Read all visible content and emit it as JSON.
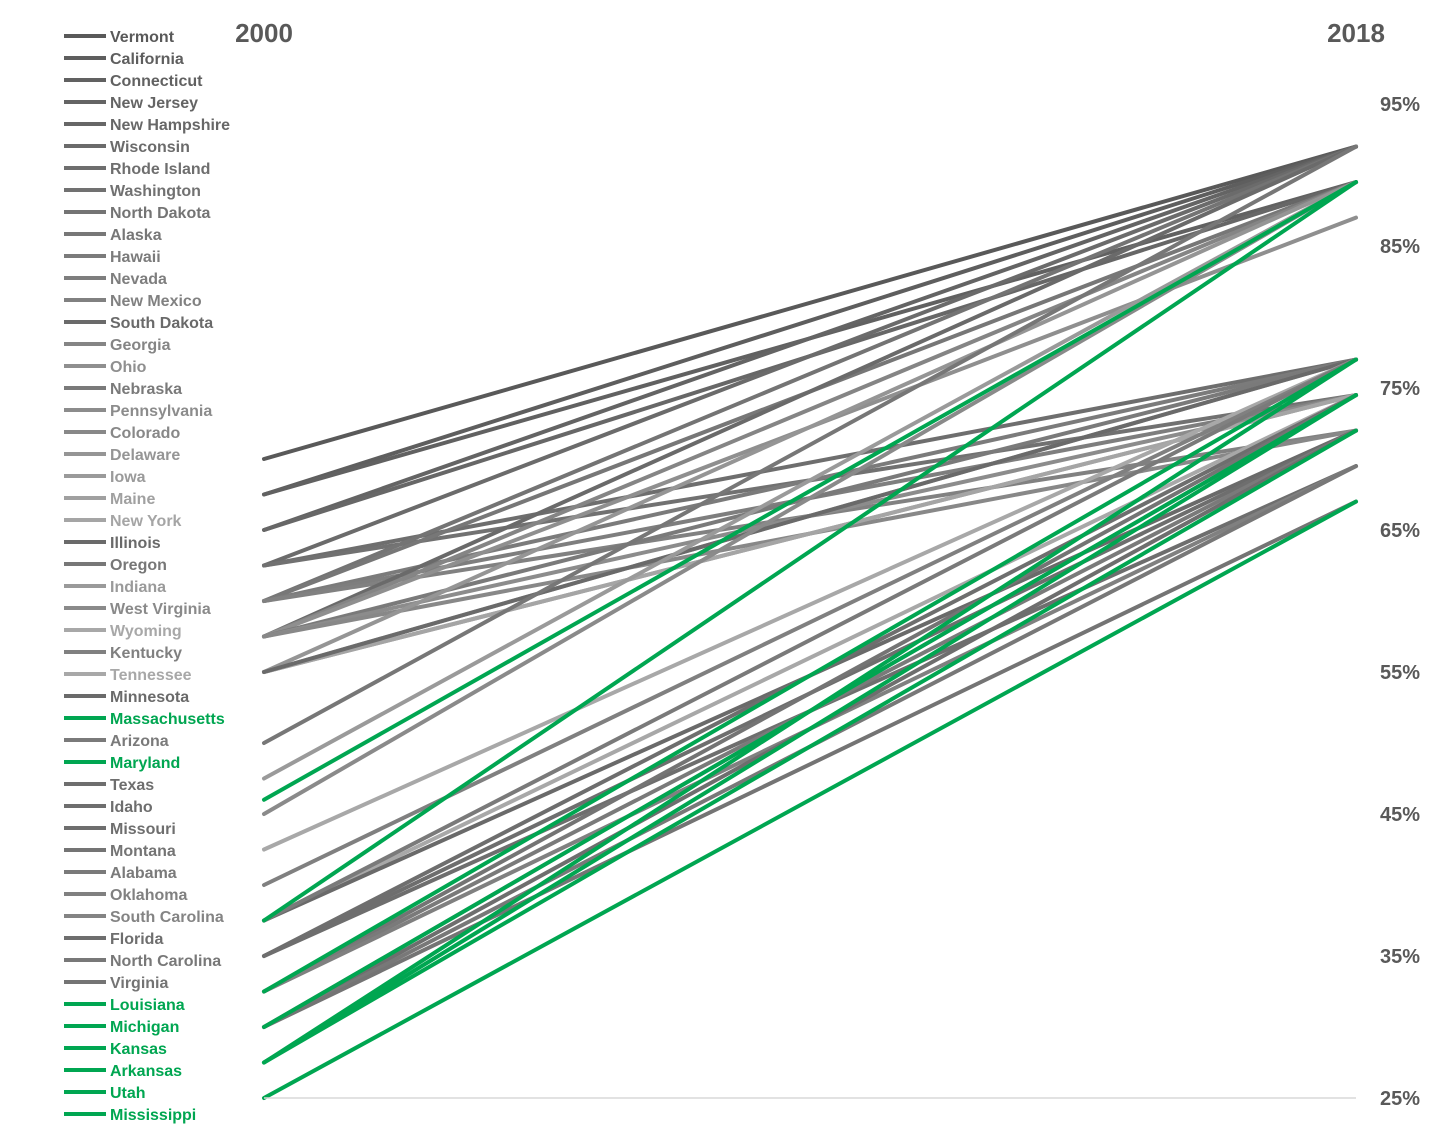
{
  "chart_data": {
    "type": "line",
    "x": [
      "2000",
      "2018"
    ],
    "y_axis": {
      "range": [
        25,
        95
      ],
      "tick_step": 10,
      "ticks": [
        "25%",
        "35%",
        "45%",
        "55%",
        "65%",
        "75%",
        "85%",
        "95%"
      ],
      "side": "right",
      "unit": "%"
    },
    "grid": false,
    "legend_placement": "left",
    "colors": {
      "highlight": "#00A651",
      "axis": "#D9D9D9",
      "label": "#595959"
    },
    "series": [
      {
        "name": "Vermont",
        "values": [
          70,
          92
        ],
        "color": "#595959",
        "highlight": false
      },
      {
        "name": "California",
        "values": [
          67.5,
          92
        ],
        "color": "#5e5e5e",
        "highlight": false
      },
      {
        "name": "Connecticut",
        "values": [
          67.5,
          89.5
        ],
        "color": "#616161",
        "highlight": false
      },
      {
        "name": "New Jersey",
        "values": [
          65,
          92
        ],
        "color": "#646464",
        "highlight": false
      },
      {
        "name": "New Hampshire",
        "values": [
          65,
          89.5
        ],
        "color": "#676767",
        "highlight": false
      },
      {
        "name": "Wisconsin",
        "values": [
          62.5,
          92
        ],
        "color": "#6b6b6b",
        "highlight": false
      },
      {
        "name": "Rhode Island",
        "values": [
          62.5,
          77
        ],
        "color": "#6e6e6e",
        "highlight": false
      },
      {
        "name": "Washington",
        "values": [
          62.5,
          74.5
        ],
        "color": "#717171",
        "highlight": false
      },
      {
        "name": "North Dakota",
        "values": [
          60,
          92
        ],
        "color": "#747474",
        "highlight": false
      },
      {
        "name": "Alaska",
        "values": [
          60,
          89.5
        ],
        "color": "#777777",
        "highlight": false
      },
      {
        "name": "Hawaii",
        "values": [
          60,
          77
        ],
        "color": "#7b7b7b",
        "highlight": false
      },
      {
        "name": "Nevada",
        "values": [
          60,
          74.5
        ],
        "color": "#7e7e7e",
        "highlight": false
      },
      {
        "name": "New Mexico",
        "values": [
          60,
          72
        ],
        "color": "#818181",
        "highlight": false
      },
      {
        "name": "South Dakota",
        "values": [
          57.5,
          92
        ],
        "color": "#6a6a6a",
        "highlight": false
      },
      {
        "name": "Georgia",
        "values": [
          57.5,
          89.5
        ],
        "color": "#858585",
        "highlight": false
      },
      {
        "name": "Ohio",
        "values": [
          57.5,
          87
        ],
        "color": "#8f8f8f",
        "highlight": false
      },
      {
        "name": "Nebraska",
        "values": [
          57.5,
          77
        ],
        "color": "#7a7a7a",
        "highlight": false
      },
      {
        "name": "Pennsylvania",
        "values": [
          57.5,
          74.5
        ],
        "color": "#8c8c8c",
        "highlight": false
      },
      {
        "name": "Colorado",
        "values": [
          57.5,
          72
        ],
        "color": "#888888",
        "highlight": false
      },
      {
        "name": "Delaware",
        "values": [
          55,
          89.5
        ],
        "color": "#959595",
        "highlight": false
      },
      {
        "name": "Iowa",
        "values": [
          55,
          77
        ],
        "color": "#9a9a9a",
        "highlight": false
      },
      {
        "name": "Maine",
        "values": [
          55,
          74.5
        ],
        "color": "#a0a0a0",
        "highlight": false
      },
      {
        "name": "New York",
        "values": [
          55,
          74.5
        ],
        "color": "#a5a5a5",
        "highlight": false
      },
      {
        "name": "Illinois",
        "values": [
          55,
          77
        ],
        "color": "#6a6a6a",
        "highlight": false
      },
      {
        "name": "Oregon",
        "values": [
          50,
          92
        ],
        "color": "#777777",
        "highlight": false
      },
      {
        "name": "Indiana",
        "values": [
          47.5,
          89.5
        ],
        "color": "#9a9a9a",
        "highlight": false
      },
      {
        "name": "West Virginia",
        "values": [
          45,
          89.5
        ],
        "color": "#8a8a8a",
        "highlight": false
      },
      {
        "name": "Wyoming",
        "values": [
          42.5,
          77
        ],
        "color": "#a8a8a8",
        "highlight": false
      },
      {
        "name": "Kentucky",
        "values": [
          40,
          77
        ],
        "color": "#808080",
        "highlight": false
      },
      {
        "name": "Tennessee",
        "values": [
          37.5,
          74.5
        ],
        "color": "#a8a8a8",
        "highlight": false
      },
      {
        "name": "Minnesota",
        "values": [
          37.5,
          72
        ],
        "color": "#6a6a6a",
        "highlight": false
      },
      {
        "name": "Massachusetts",
        "values": [
          46,
          89.5
        ],
        "color": "#00A651",
        "highlight": true
      },
      {
        "name": "Arizona",
        "values": [
          37.5,
          77
        ],
        "color": "#7a7a7a",
        "highlight": false
      },
      {
        "name": "Maryland",
        "values": [
          37.5,
          89.5
        ],
        "color": "#00A651",
        "highlight": true
      },
      {
        "name": "Texas",
        "values": [
          35,
          74.5
        ],
        "color": "#6e6e6e",
        "highlight": false
      },
      {
        "name": "Idaho",
        "values": [
          35,
          72
        ],
        "color": "#6e6e6e",
        "highlight": false
      },
      {
        "name": "Missouri",
        "values": [
          35,
          69.5
        ],
        "color": "#6e6e6e",
        "highlight": false
      },
      {
        "name": "Montana",
        "values": [
          32.5,
          74.5
        ],
        "color": "#747474",
        "highlight": false
      },
      {
        "name": "Alabama",
        "values": [
          32.5,
          72
        ],
        "color": "#7a7a7a",
        "highlight": false
      },
      {
        "name": "Oklahoma",
        "values": [
          32.5,
          69.5
        ],
        "color": "#808080",
        "highlight": false
      },
      {
        "name": "South Carolina",
        "values": [
          30,
          74.5
        ],
        "color": "#848484",
        "highlight": false
      },
      {
        "name": "Florida",
        "values": [
          30,
          72
        ],
        "color": "#6e6e6e",
        "highlight": false
      },
      {
        "name": "North Carolina",
        "values": [
          30,
          69.5
        ],
        "color": "#787878",
        "highlight": false
      },
      {
        "name": "Virginia",
        "values": [
          30,
          67
        ],
        "color": "#747474",
        "highlight": false
      },
      {
        "name": "Louisiana",
        "values": [
          32.5,
          77
        ],
        "color": "#00A651",
        "highlight": true
      },
      {
        "name": "Michigan",
        "values": [
          30,
          74.5
        ],
        "color": "#00A651",
        "highlight": true
      },
      {
        "name": "Kansas",
        "values": [
          27.5,
          77
        ],
        "color": "#00A651",
        "highlight": true
      },
      {
        "name": "Arkansas",
        "values": [
          27.5,
          74.5
        ],
        "color": "#00A651",
        "highlight": true
      },
      {
        "name": "Utah",
        "values": [
          27.5,
          72
        ],
        "color": "#00A651",
        "highlight": true
      },
      {
        "name": "Mississippi",
        "values": [
          25,
          67
        ],
        "color": "#00A651",
        "highlight": true
      }
    ]
  }
}
